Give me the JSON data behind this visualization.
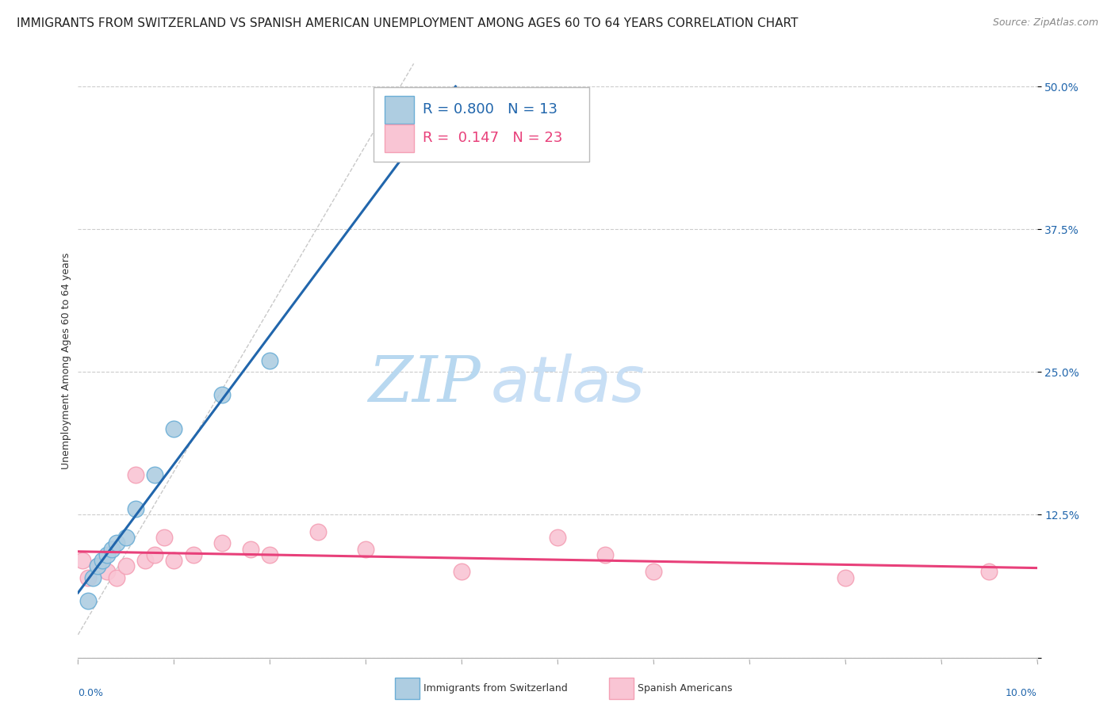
{
  "title": "IMMIGRANTS FROM SWITZERLAND VS SPANISH AMERICAN UNEMPLOYMENT AMONG AGES 60 TO 64 YEARS CORRELATION CHART",
  "source": "Source: ZipAtlas.com",
  "ylabel": "Unemployment Among Ages 60 to 64 years",
  "background_color": "#ffffff",
  "watermark_zip": "ZIP",
  "watermark_atlas": "atlas",
  "swiss_points": [
    [
      0.1,
      5.0
    ],
    [
      0.15,
      7.0
    ],
    [
      0.2,
      8.0
    ],
    [
      0.25,
      8.5
    ],
    [
      0.3,
      9.0
    ],
    [
      0.35,
      9.5
    ],
    [
      0.4,
      10.0
    ],
    [
      0.5,
      10.5
    ],
    [
      0.6,
      13.0
    ],
    [
      0.8,
      16.0
    ],
    [
      1.0,
      20.0
    ],
    [
      1.5,
      23.0
    ],
    [
      2.0,
      26.0
    ]
  ],
  "spanish_points": [
    [
      0.05,
      8.5
    ],
    [
      0.1,
      7.0
    ],
    [
      0.2,
      8.0
    ],
    [
      0.3,
      7.5
    ],
    [
      0.4,
      7.0
    ],
    [
      0.5,
      8.0
    ],
    [
      0.6,
      16.0
    ],
    [
      0.7,
      8.5
    ],
    [
      0.8,
      9.0
    ],
    [
      0.9,
      10.5
    ],
    [
      1.0,
      8.5
    ],
    [
      1.2,
      9.0
    ],
    [
      1.5,
      10.0
    ],
    [
      1.8,
      9.5
    ],
    [
      2.0,
      9.0
    ],
    [
      2.5,
      11.0
    ],
    [
      3.0,
      9.5
    ],
    [
      4.0,
      7.5
    ],
    [
      5.0,
      10.5
    ],
    [
      5.5,
      9.0
    ],
    [
      6.0,
      7.5
    ],
    [
      8.0,
      7.0
    ],
    [
      9.5,
      7.5
    ]
  ],
  "swiss_R": "0.800",
  "swiss_N": "13",
  "spanish_R": "0.147",
  "spanish_N": "23",
  "swiss_color_edge": "#6baed6",
  "swiss_color_fill": "#aecde1",
  "spanish_color_edge": "#f4a0b5",
  "spanish_color_fill": "#f9c5d4",
  "trend_swiss_color": "#2166ac",
  "trend_spanish_color": "#e8407a",
  "xlim": [
    0.0,
    10.0
  ],
  "ylim": [
    0.0,
    52.0
  ],
  "yticks": [
    0.0,
    12.5,
    25.0,
    37.5,
    50.0
  ],
  "ytick_labels": [
    "",
    "12.5%",
    "25.0%",
    "37.5%",
    "50.0%"
  ],
  "xtick_left": "0.0%",
  "xtick_right": "10.0%",
  "grid_color": "#cccccc",
  "title_fontsize": 11,
  "source_fontsize": 9,
  "axis_label_fontsize": 9,
  "legend_fontsize": 13,
  "watermark_zip_color": "#b8d8f0",
  "watermark_atlas_color": "#c8dff5",
  "watermark_fontsize": 58,
  "scatter_size": 220
}
